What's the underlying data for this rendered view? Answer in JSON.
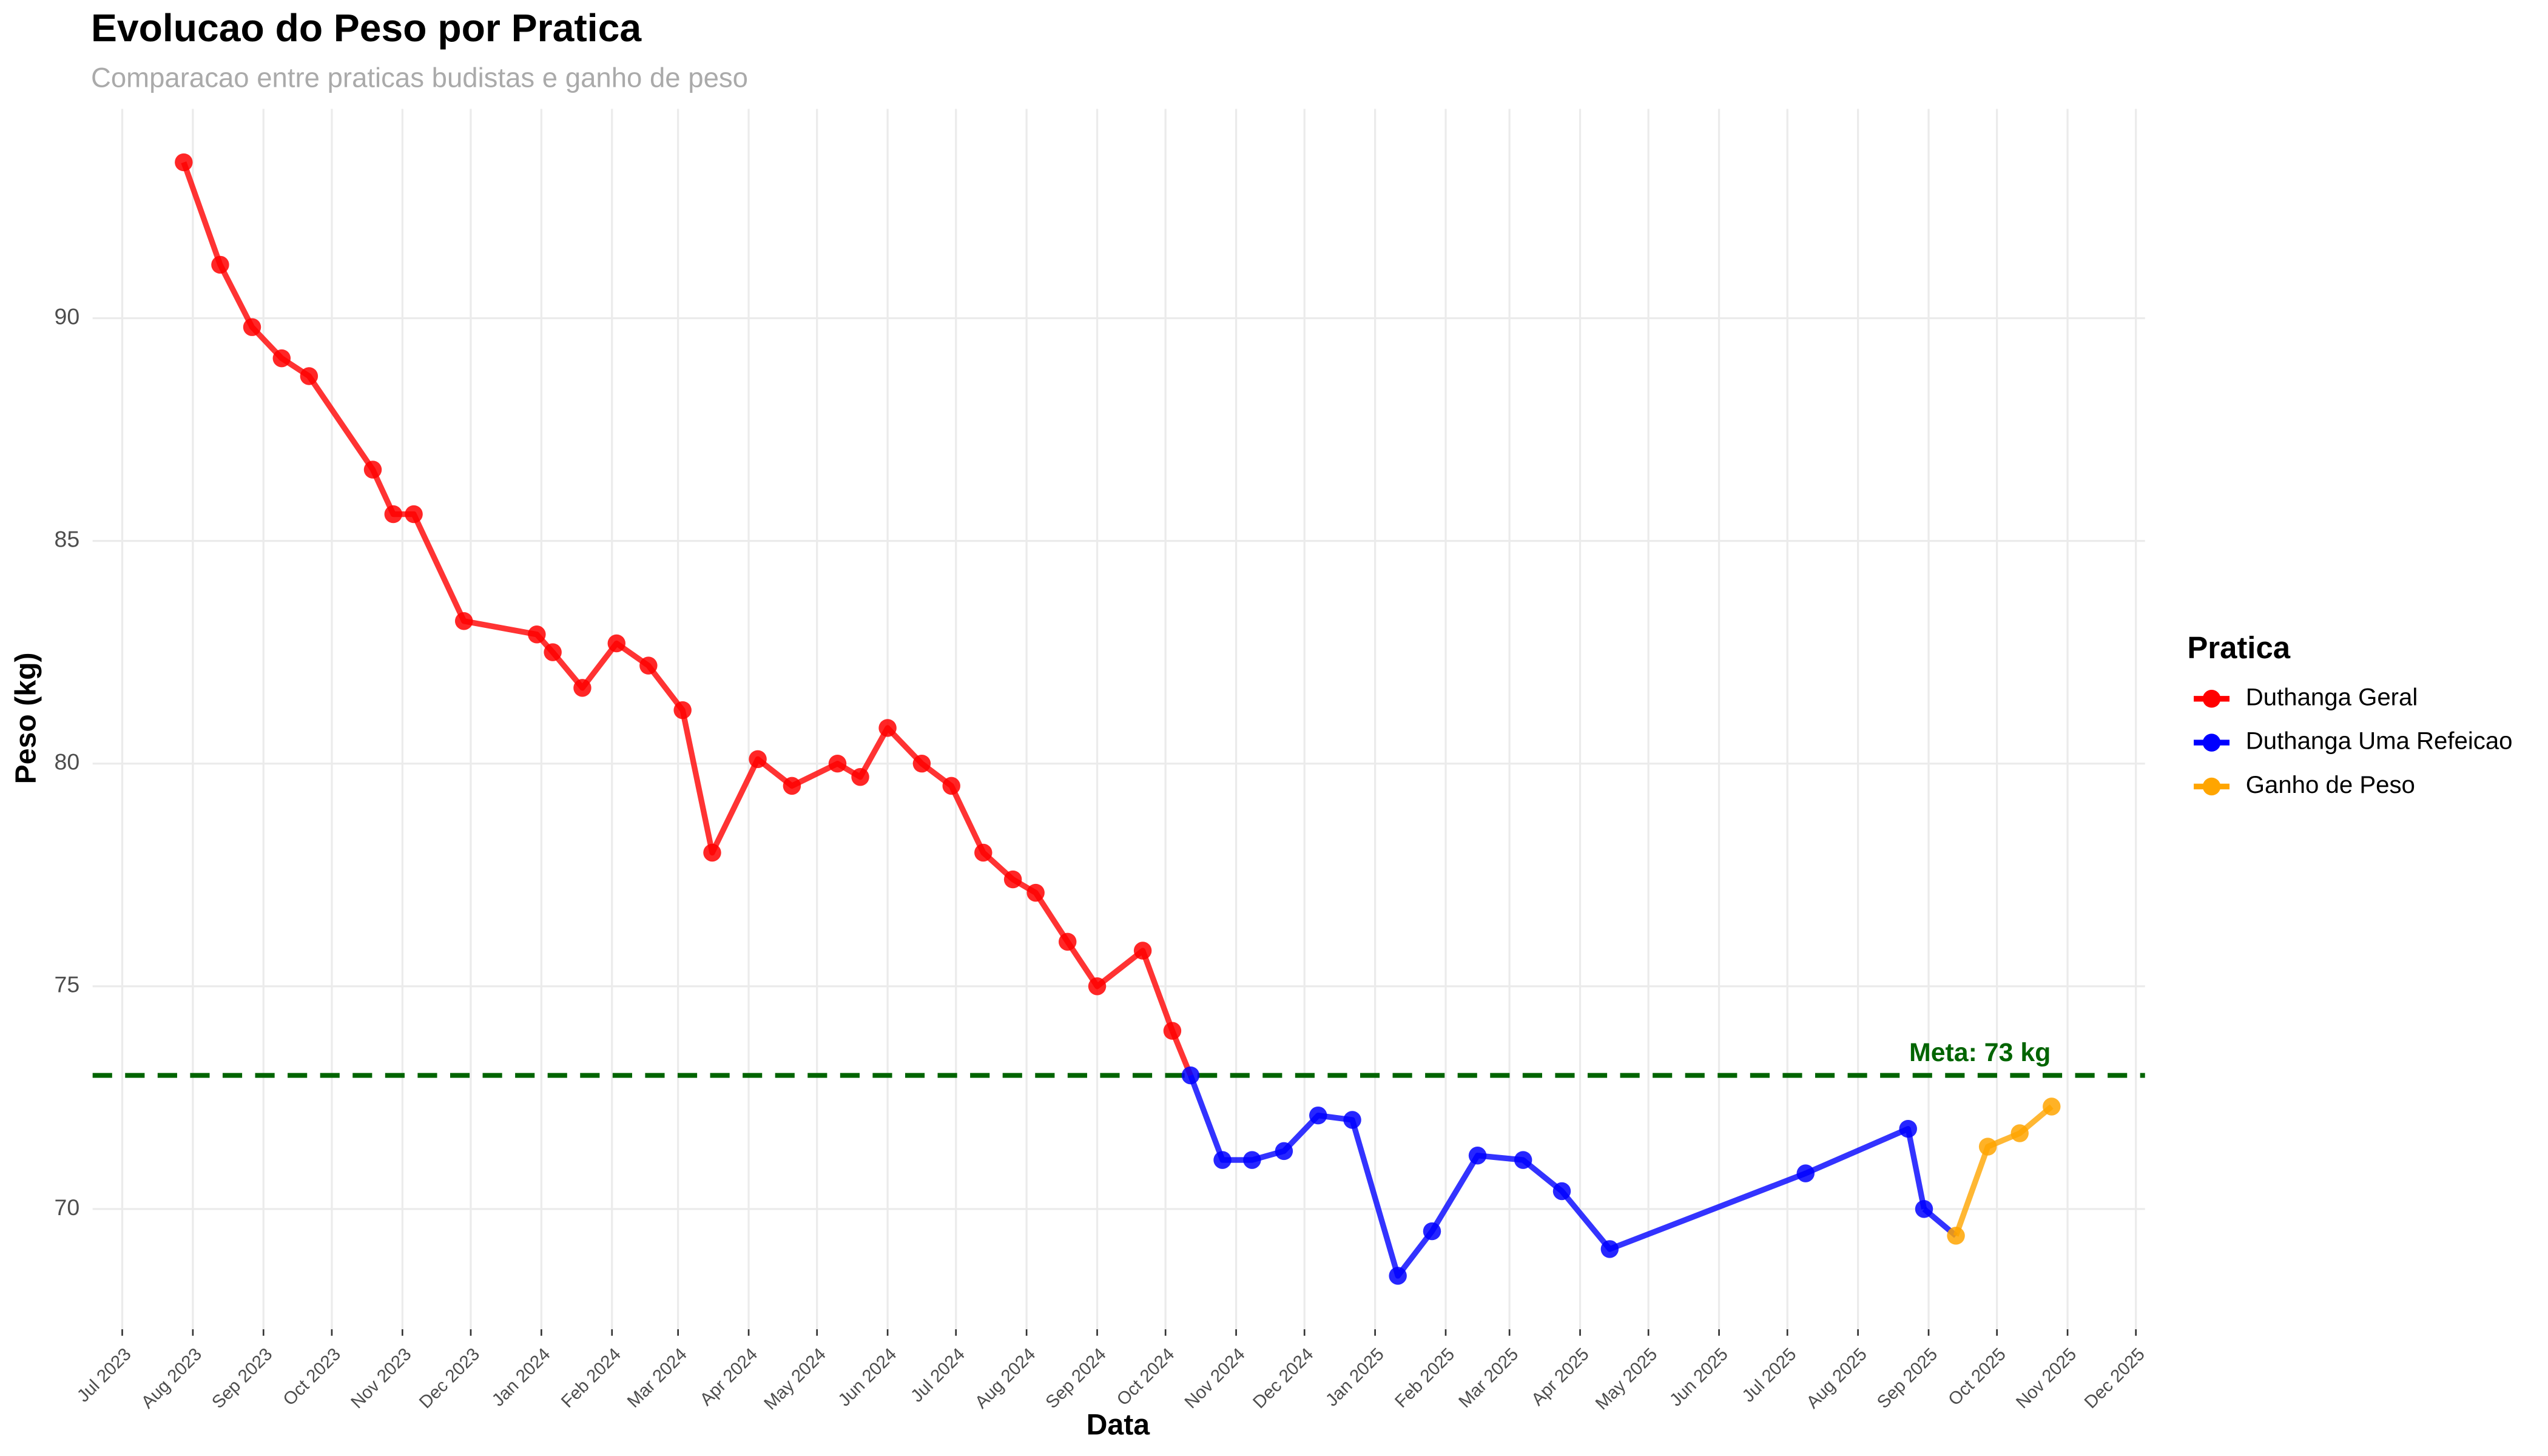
{
  "chart_data": {
    "type": "line",
    "title": "Evolucao do Peso por Pratica",
    "subtitle": "Comparacao entre praticas budistas e ganho de peso",
    "x_label": "Data",
    "y_label": "Peso (kg)",
    "legend_title": "Pratica",
    "legend_position": "right",
    "grid": true,
    "xlim": [
      "2023-06-18",
      "2025-12-05"
    ],
    "xticks": [
      {
        "value": "2023-07-01",
        "label": "Jul 2023"
      },
      {
        "value": "2023-08-01",
        "label": "Aug 2023"
      },
      {
        "value": "2023-09-01",
        "label": "Sep 2023"
      },
      {
        "value": "2023-10-01",
        "label": "Oct 2023"
      },
      {
        "value": "2023-11-01",
        "label": "Nov 2023"
      },
      {
        "value": "2023-12-01",
        "label": "Dec 2023"
      },
      {
        "value": "2024-01-01",
        "label": "Jan 2024"
      },
      {
        "value": "2024-02-01",
        "label": "Feb 2024"
      },
      {
        "value": "2024-03-01",
        "label": "Mar 2024"
      },
      {
        "value": "2024-04-01",
        "label": "Apr 2024"
      },
      {
        "value": "2024-05-01",
        "label": "May 2024"
      },
      {
        "value": "2024-06-01",
        "label": "Jun 2024"
      },
      {
        "value": "2024-07-01",
        "label": "Jul 2024"
      },
      {
        "value": "2024-08-01",
        "label": "Aug 2024"
      },
      {
        "value": "2024-09-01",
        "label": "Sep 2024"
      },
      {
        "value": "2024-10-01",
        "label": "Oct 2024"
      },
      {
        "value": "2024-11-01",
        "label": "Nov 2024"
      },
      {
        "value": "2024-12-01",
        "label": "Dec 2024"
      },
      {
        "value": "2025-01-01",
        "label": "Jan 2025"
      },
      {
        "value": "2025-02-01",
        "label": "Feb 2025"
      },
      {
        "value": "2025-03-01",
        "label": "Mar 2025"
      },
      {
        "value": "2025-04-01",
        "label": "Apr 2025"
      },
      {
        "value": "2025-05-01",
        "label": "May 2025"
      },
      {
        "value": "2025-06-01",
        "label": "Jun 2025"
      },
      {
        "value": "2025-07-01",
        "label": "Jul 2025"
      },
      {
        "value": "2025-08-01",
        "label": "Aug 2025"
      },
      {
        "value": "2025-09-01",
        "label": "Sep 2025"
      },
      {
        "value": "2025-10-01",
        "label": "Oct 2025"
      },
      {
        "value": "2025-11-01",
        "label": "Nov 2025"
      },
      {
        "value": "2025-12-01",
        "label": "Dec 2025"
      }
    ],
    "ylim": [
      67.3,
      94.7
    ],
    "yticks": [
      70,
      75,
      80,
      85,
      90
    ],
    "reference_line": {
      "value": 73,
      "label": "Meta: 73 kg",
      "color": "#006400"
    },
    "series": [
      {
        "name": "Duthanga Geral",
        "color": "#ff0000",
        "x": [
          "2023-07-28",
          "2023-08-13",
          "2023-08-27",
          "2023-09-09",
          "2023-09-21",
          "2023-10-19",
          "2023-10-28",
          "2023-11-06",
          "2023-11-28",
          "2023-12-30",
          "2024-01-06",
          "2024-01-19",
          "2024-02-03",
          "2024-02-17",
          "2024-03-03",
          "2024-03-16",
          "2024-04-05",
          "2024-04-20",
          "2024-05-10",
          "2024-05-20",
          "2024-06-01",
          "2024-06-16",
          "2024-06-29",
          "2024-07-13",
          "2024-07-26",
          "2024-08-05",
          "2024-08-19",
          "2024-09-01",
          "2024-09-21",
          "2024-10-04"
        ],
        "values": [
          93.5,
          91.2,
          89.8,
          89.1,
          88.7,
          86.6,
          85.6,
          85.6,
          83.2,
          82.9,
          82.5,
          81.7,
          82.7,
          82.2,
          81.2,
          78.0,
          80.1,
          79.5,
          80.0,
          79.7,
          80.8,
          80.0,
          79.5,
          78.0,
          77.4,
          77.1,
          76.0,
          75.0,
          75.8,
          74.0
        ]
      },
      {
        "name": "Duthanga Uma Refeicao",
        "color": "#0000ff",
        "x": [
          "2024-10-12",
          "2024-10-26",
          "2024-11-08",
          "2024-11-22",
          "2024-12-07",
          "2024-12-22",
          "2025-01-11",
          "2025-01-26",
          "2025-02-15",
          "2025-03-07",
          "2025-03-24",
          "2025-04-14",
          "2025-07-09",
          "2025-08-23",
          "2025-08-30"
        ],
        "values": [
          73.0,
          71.1,
          71.1,
          71.3,
          72.1,
          72.0,
          68.5,
          69.5,
          71.2,
          71.1,
          70.4,
          69.1,
          70.8,
          71.8,
          70.0
        ]
      },
      {
        "name": "Ganho de Peso",
        "color": "#ffa500",
        "x": [
          "2025-09-13",
          "2025-09-27",
          "2025-10-11",
          "2025-10-25"
        ],
        "values": [
          69.4,
          71.4,
          71.7,
          72.3
        ]
      }
    ]
  }
}
